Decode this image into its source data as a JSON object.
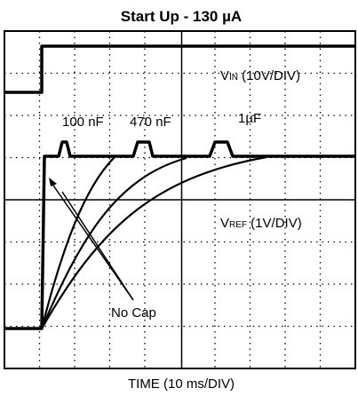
{
  "title": "Start Up - 130 µA",
  "traces": {
    "vin": {
      "symbol": "V",
      "sub": "IN",
      "scale": " (10V/DIV)"
    },
    "vref": {
      "symbol": "V",
      "sub": "REF",
      "scale": " (1V/DIV)"
    }
  },
  "annotations": [
    "100 nF",
    "470 nF",
    "1µF",
    "No Cap"
  ],
  "x_axis_label": "TIME (10 ms/DIV)"
}
